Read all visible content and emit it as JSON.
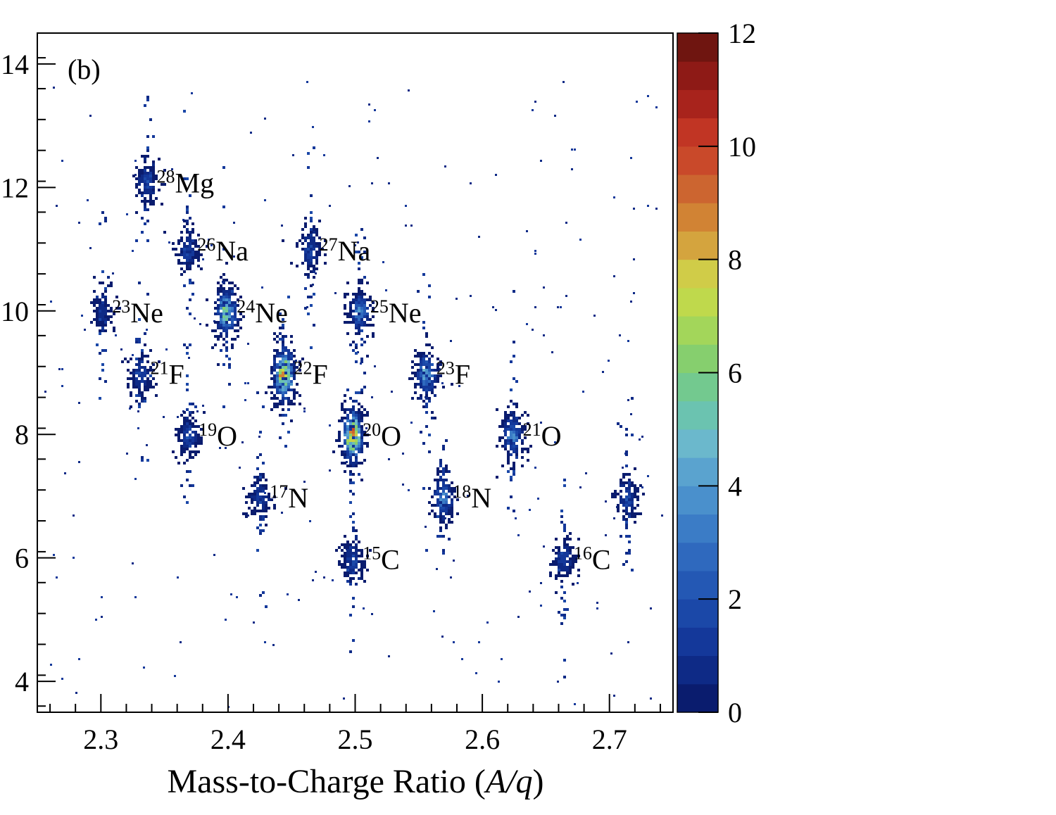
{
  "chart_data": {
    "type": "heatmap",
    "panel_label": "(b)",
    "xlabel_parts": [
      "Mass-to-Charge Ratio (",
      "A/q",
      ")"
    ],
    "xlim": [
      2.25,
      2.75
    ],
    "ylim": [
      3.5,
      14.5
    ],
    "x_ticks": [
      2.3,
      2.4,
      2.5,
      2.6,
      2.7
    ],
    "x_tick_labels": [
      "2.3",
      "2.4",
      "2.5",
      "2.6",
      "2.7"
    ],
    "y_ticks": [
      4,
      6,
      8,
      10,
      12,
      14
    ],
    "y_tick_labels": [
      "4",
      "6",
      "8",
      "10",
      "12",
      "14"
    ],
    "colorbar": {
      "range": [
        0,
        12
      ],
      "ticks": [
        0,
        2,
        4,
        6,
        8,
        10,
        12
      ],
      "tick_labels": [
        "0",
        "2",
        "4",
        "6",
        "8",
        "10",
        "12"
      ],
      "colors": [
        "#0a1c6e",
        "#0e2a86",
        "#14389a",
        "#1b48a8",
        "#2458b4",
        "#2f69be",
        "#3b7cc6",
        "#4a90cc",
        "#5aa3cf",
        "#6bb8cc",
        "#6bc3b0",
        "#73c98f",
        "#86cf6e",
        "#a3d65a",
        "#bfd94c",
        "#d0cc48",
        "#d4a43e",
        "#d18334",
        "#cc6530",
        "#c9492a",
        "#c13524",
        "#a8231c",
        "#8e1a16",
        "#6f1510"
      ]
    },
    "clusters": [
      {
        "mass": "28",
        "element": "Mg",
        "x": 2.335,
        "y": 12.1,
        "peak": 2
      },
      {
        "mass": "26",
        "element": "Na",
        "x": 2.367,
        "y": 11.0,
        "peak": 2
      },
      {
        "mass": "27",
        "element": "Na",
        "x": 2.463,
        "y": 11.0,
        "peak": 2
      },
      {
        "mass": "23",
        "element": "Ne",
        "x": 2.3,
        "y": 10.0,
        "peak": 1
      },
      {
        "mass": "24",
        "element": "Ne",
        "x": 2.398,
        "y": 10.0,
        "peak": 7
      },
      {
        "mass": "25",
        "element": "Ne",
        "x": 2.503,
        "y": 10.0,
        "peak": 4
      },
      {
        "mass": "21",
        "element": "F",
        "x": 2.33,
        "y": 9.0,
        "peak": 2
      },
      {
        "mass": "22",
        "element": "F",
        "x": 2.443,
        "y": 9.0,
        "peak": 10
      },
      {
        "mass": "23",
        "element": "F",
        "x": 2.555,
        "y": 9.0,
        "peak": 5
      },
      {
        "mass": "19",
        "element": "O",
        "x": 2.368,
        "y": 8.0,
        "peak": 2
      },
      {
        "mass": "20",
        "element": "O",
        "x": 2.497,
        "y": 8.0,
        "peak": 10
      },
      {
        "mass": "21",
        "element": "O",
        "x": 2.623,
        "y": 8.0,
        "peak": 4
      },
      {
        "mass": "17",
        "element": "N",
        "x": 2.424,
        "y": 7.0,
        "peak": 2
      },
      {
        "mass": "18",
        "element": "N",
        "x": 2.568,
        "y": 7.0,
        "peak": 4
      },
      {
        "mass": "15",
        "element": "C",
        "x": 2.497,
        "y": 6.0,
        "peak": 2
      },
      {
        "mass": "16",
        "element": "C",
        "x": 2.663,
        "y": 6.0,
        "peak": 2
      },
      {
        "mass": "",
        "element": "",
        "x": 2.713,
        "y": 7.0,
        "peak": 2
      }
    ]
  }
}
